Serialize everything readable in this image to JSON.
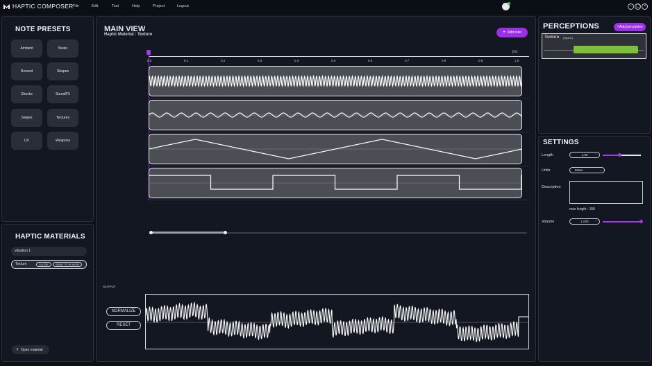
{
  "app": {
    "title": "HAPTIC COMPOSER",
    "menu": [
      "File",
      "Edit",
      "Test",
      "Help",
      "Project",
      "Logout"
    ]
  },
  "window_controls": [
    "−",
    "▢",
    "×"
  ],
  "presets": {
    "title": "NOTE PRESETS",
    "items": [
      "Ambient",
      "Beats",
      "Reward",
      "Shapes",
      "Shocks",
      "SoundFX",
      "Swipes",
      "Textures",
      "UX",
      "Weapons"
    ]
  },
  "materials": {
    "title": "HAPTIC MATERIALS",
    "items": [
      {
        "label": "vibration 1"
      },
      {
        "label": "Texture",
        "close_label": "CLOSE",
        "send_label": "SEND TO PLAYER"
      }
    ],
    "open_label": "Open material"
  },
  "main": {
    "title": "MAIN VIEW",
    "subtitle": "Haptic Material : Texture",
    "add_note_label": "Add note",
    "unit_label": "[m]",
    "ticks": [
      "0.0",
      "0.1",
      "0.2",
      "0.3",
      "0.4",
      "0.5",
      "0.6",
      "0.7",
      "0.8",
      "0.9",
      "1.0"
    ],
    "scroll_position": 0.2,
    "output_label": "OUTPUT",
    "normalize_label": "NORMALIZE",
    "reset_label": "RESET"
  },
  "perceptions": {
    "title": "PERCEPTIONS",
    "add_label": "Add perception",
    "items": [
      {
        "name": "Texture",
        "tag": "(Space)"
      }
    ]
  },
  "settings": {
    "title": "SETTINGS",
    "length_label": "Length",
    "length_value": "1,00",
    "length_level": 0.45,
    "units_label": "Units",
    "units_value": "Meter",
    "description_label": "Description",
    "description_value": "",
    "max_length_label": "max length : 150",
    "volume_label": "Volume",
    "volume_value": "1,000",
    "volume_level": 1.0
  },
  "colors": {
    "accent": "#9b30e6",
    "perception_bar": "#7ec03a",
    "online": "#3ad17a"
  }
}
